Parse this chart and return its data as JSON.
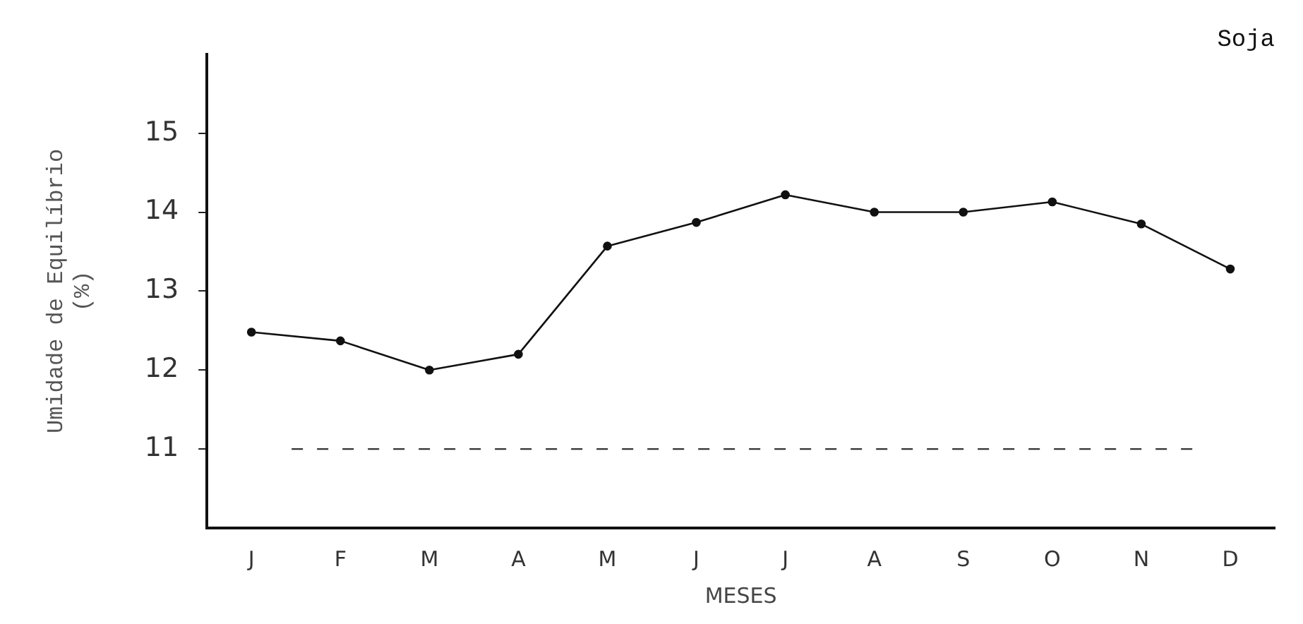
{
  "chart_data": {
    "type": "line",
    "title": "Soja",
    "xlabel": "MESES",
    "ylabel": "Umidade de Equilíbrio (%)",
    "categories": [
      "J",
      "F",
      "M",
      "A",
      "M",
      "J",
      "J",
      "A",
      "S",
      "O",
      "N",
      "D"
    ],
    "series": [
      {
        "color": "#111111",
        "values": [
          12.48,
          12.37,
          12.0,
          12.2,
          13.57,
          13.87,
          14.22,
          14.0,
          14.0,
          14.13,
          13.85,
          13.28
        ]
      }
    ],
    "ylim": [
      10,
      16
    ],
    "yticks": [
      11,
      12,
      13,
      14,
      15
    ],
    "grid": false,
    "legend": false,
    "marker": "circle",
    "line_style": "solid",
    "ref_lines": [
      {
        "axis": "y",
        "value": 11,
        "line_style": "dashed",
        "color": "#333333"
      }
    ]
  }
}
